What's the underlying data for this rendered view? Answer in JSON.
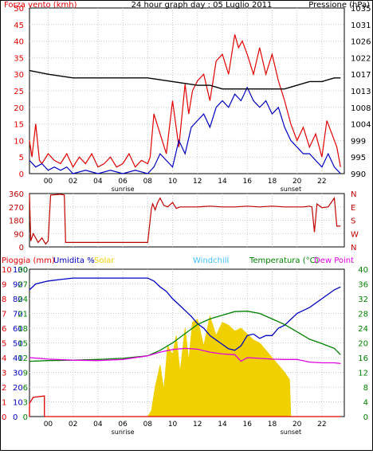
{
  "chart_data": [
    {
      "type": "line",
      "title": "24 hour graph day : 05 Luglio 2011",
      "left_axis_label": "Forza vento (kmh)",
      "right_axis_label": "Pressione (hPa)",
      "x_ticks": [
        "00",
        "02",
        "04",
        "06",
        "08",
        "10",
        "12",
        "14",
        "16",
        "18",
        "20",
        "22"
      ],
      "x_annotations": [
        {
          "label": "sunrise",
          "x": 6
        },
        {
          "label": "sunset",
          "x": 19.5
        }
      ],
      "y_left_ticks": [
        0,
        5,
        10,
        15,
        20,
        25,
        30,
        35,
        40,
        45,
        50
      ],
      "y_right_ticks": [
        990,
        995,
        999,
        1004,
        1008,
        1013,
        1017,
        1022,
        1026,
        1031,
        1035
      ],
      "ylim_left": [
        0,
        50
      ],
      "ylim_right": [
        990,
        1035
      ],
      "grid": true,
      "series": [
        {
          "name": "gust",
          "color": "#e00000",
          "axis": "left",
          "x": [
            -1.5,
            -1.3,
            -1,
            -0.7,
            -0.5,
            0,
            0.5,
            1,
            1.5,
            2,
            2.5,
            3,
            3.5,
            4,
            4.5,
            5,
            5.5,
            6,
            6.5,
            7,
            7.5,
            8,
            8.2,
            8.5,
            9,
            9.5,
            10,
            10.5,
            11,
            11.3,
            11.6,
            12,
            12.5,
            13,
            13.5,
            14,
            14.5,
            15,
            15.3,
            15.6,
            16,
            16.5,
            17,
            17.5,
            18,
            18.5,
            19,
            19.5,
            20,
            20.5,
            21,
            21.5,
            22,
            22.4,
            22.8,
            23.2,
            23.5
          ],
          "y": [
            10,
            5,
            15,
            4,
            3,
            6,
            4,
            3,
            6,
            2,
            5,
            3,
            6,
            2,
            3,
            5,
            2,
            3,
            6,
            2,
            4,
            3,
            5,
            18,
            12,
            6,
            22,
            8,
            27,
            18,
            25,
            28,
            30,
            22,
            34,
            36,
            30,
            42,
            38,
            40,
            36,
            30,
            38,
            30,
            36,
            28,
            22,
            15,
            10,
            14,
            8,
            12,
            5,
            16,
            12,
            8,
            2
          ]
        },
        {
          "name": "speed",
          "color": "#0000c0",
          "axis": "left",
          "x": [
            -1.5,
            -1,
            -0.5,
            0,
            0.5,
            1,
            1.5,
            2,
            3,
            4,
            5,
            6,
            7,
            8,
            8.5,
            9,
            9.5,
            10,
            10.5,
            11,
            11.5,
            12,
            12.5,
            13,
            13.5,
            14,
            14.5,
            15,
            15.5,
            16,
            16.5,
            17,
            17.5,
            18,
            18.5,
            19,
            19.5,
            20,
            20.5,
            21,
            21.5,
            22,
            22.5,
            23,
            23.5
          ],
          "y": [
            4,
            2,
            3,
            1,
            2,
            1,
            2,
            0,
            1,
            0,
            1,
            0,
            1,
            0,
            2,
            6,
            4,
            2,
            10,
            6,
            14,
            16,
            18,
            14,
            20,
            22,
            20,
            24,
            22,
            26,
            22,
            20,
            22,
            18,
            20,
            14,
            10,
            8,
            6,
            6,
            4,
            2,
            6,
            2,
            0
          ]
        },
        {
          "name": "pressione",
          "color": "#000000",
          "axis": "right",
          "x": [
            -1.5,
            0,
            2,
            4,
            6,
            8,
            10,
            12,
            13,
            14,
            15,
            16,
            17,
            18,
            19,
            20,
            21,
            22,
            23,
            23.5
          ],
          "y": [
            1018,
            1017,
            1016,
            1016,
            1016,
            1016,
            1015,
            1014,
            1014,
            1013,
            1013,
            1013,
            1013,
            1013,
            1013,
            1014,
            1015,
            1015,
            1016,
            1016
          ]
        }
      ]
    },
    {
      "type": "line",
      "left_ticks": [
        0,
        90,
        180,
        270,
        360
      ],
      "right_labels": [
        "N",
        "W",
        "S",
        "E",
        "N"
      ],
      "ylim": [
        0,
        360
      ],
      "series": [
        {
          "name": "direzione",
          "color": "#c00000",
          "x": [
            -1.5,
            -1.4,
            -1.2,
            -1,
            -0.8,
            -0.5,
            -0.2,
            0,
            0.2,
            1,
            1.3,
            1.4,
            2,
            4,
            6,
            8,
            8.3,
            8.4,
            8.6,
            8.8,
            9,
            9.3,
            9.6,
            10,
            10.3,
            10.6,
            11,
            12,
            13,
            14,
            15,
            16,
            17,
            18,
            19,
            20,
            20.5,
            21,
            21.2,
            21.4,
            21.6,
            22,
            22.5,
            23,
            23.2,
            23.5
          ],
          "y": [
            355,
            40,
            90,
            60,
            30,
            60,
            20,
            40,
            350,
            355,
            350,
            30,
            30,
            30,
            30,
            30,
            260,
            290,
            250,
            300,
            330,
            280,
            270,
            300,
            260,
            270,
            270,
            270,
            275,
            270,
            270,
            275,
            270,
            275,
            270,
            270,
            270,
            275,
            270,
            100,
            290,
            265,
            270,
            330,
            140,
            140
          ]
        }
      ]
    },
    {
      "type": "line",
      "legend": [
        "Pioggia (mm)",
        "Umidita %",
        "Solar",
        "Windchill",
        "Temperatura (°C)",
        "Dew Point"
      ],
      "legend_colors": [
        "#e00000",
        "#0000c0",
        "#f0d000",
        "#40c0ff",
        "#008000",
        "#e000e0"
      ],
      "x_ticks": [
        "00",
        "02",
        "04",
        "06",
        "08",
        "10",
        "12",
        "14",
        "16",
        "18",
        "20",
        "22"
      ],
      "x_annotations": [
        {
          "label": "sunrise",
          "x": 6
        },
        {
          "label": "sunset",
          "x": 19.5
        }
      ],
      "y_ticks_rain": [
        0,
        1,
        2,
        3,
        4,
        5,
        6,
        7,
        8,
        9,
        10
      ],
      "y_ticks_humidity": [
        0,
        10,
        20,
        30,
        40,
        50,
        60,
        70,
        80,
        90,
        100
      ],
      "y_ticks_temp_left": [
        0,
        3,
        6,
        9,
        12,
        15,
        18,
        21,
        24,
        27,
        30
      ],
      "y_ticks_temp_right": [
        0,
        4,
        8,
        12,
        16,
        20,
        24,
        28,
        32,
        36,
        40
      ],
      "ylim_temp_right": [
        0,
        40
      ],
      "grid": true,
      "series": [
        {
          "name": "Umidita %",
          "color": "#0000c0",
          "axis": "humidity",
          "x": [
            -1.5,
            -1,
            0,
            1,
            2,
            4,
            6,
            7,
            8,
            8.5,
            9,
            9.5,
            10,
            10.5,
            11,
            11.5,
            12,
            12.5,
            13,
            13.5,
            14,
            14.5,
            15,
            15.5,
            16,
            16.5,
            17,
            17.5,
            18,
            18.5,
            19,
            20,
            21,
            22,
            23,
            23.5
          ],
          "y": [
            86,
            90,
            92,
            93,
            94,
            94,
            94,
            94,
            94,
            92,
            88,
            85,
            80,
            76,
            72,
            68,
            63,
            60,
            55,
            52,
            49,
            46,
            45,
            48,
            55,
            56,
            53,
            55,
            55,
            60,
            62,
            70,
            74,
            80,
            86,
            88
          ]
        },
        {
          "name": "Temperatura (°C)",
          "color": "#008000",
          "axis": "temp_right",
          "x": [
            -1.5,
            0,
            2,
            4,
            6,
            8,
            9,
            10,
            11,
            12,
            13,
            14,
            15,
            16,
            17,
            18,
            19,
            20,
            21,
            22,
            23,
            23.5
          ],
          "y": [
            15,
            15.2,
            15.3,
            15.5,
            15.8,
            16.5,
            18,
            20,
            22.5,
            25,
            26.5,
            27.5,
            28.5,
            28.6,
            28,
            26.5,
            25,
            23,
            21,
            19.8,
            18.5,
            16.8
          ]
        },
        {
          "name": "Dew Point",
          "color": "#e000e0",
          "axis": "temp_right",
          "x": [
            -1.5,
            0,
            2,
            4,
            6,
            8,
            9,
            10,
            11,
            12,
            13,
            14,
            15,
            15.5,
            16,
            17,
            18,
            19,
            20,
            21,
            22,
            23,
            23.5
          ],
          "y": [
            16,
            15.6,
            15.3,
            15.2,
            15.5,
            16.5,
            17.5,
            18.2,
            18.5,
            18.3,
            17.5,
            17,
            16.8,
            15,
            16,
            15.8,
            15.6,
            15.5,
            15.5,
            14.8,
            14.6,
            14.6,
            14.4
          ]
        },
        {
          "name": "Solar",
          "color": "#f0d000",
          "axis": "humidity",
          "fill": true,
          "x": [
            8,
            8.3,
            8.6,
            9,
            9.3,
            9.6,
            10,
            10.3,
            10.6,
            11,
            11.3,
            11.6,
            12,
            12.5,
            13,
            13.5,
            14,
            14.5,
            15,
            15.5,
            16,
            16.5,
            17,
            17.5,
            18,
            18.5,
            19,
            19.4,
            19.5
          ],
          "y": [
            0,
            4,
            20,
            35,
            18,
            48,
            42,
            55,
            30,
            60,
            38,
            64,
            66,
            48,
            68,
            55,
            64,
            62,
            58,
            60,
            56,
            52,
            50,
            45,
            40,
            35,
            30,
            25,
            0
          ]
        },
        {
          "name": "Pioggia (mm)",
          "color": "#e00000",
          "axis": "rain",
          "x": [
            -1.5,
            -1.5,
            -1.2,
            -0.3,
            -0.3,
            23.5
          ],
          "y": [
            0,
            0.9,
            1.3,
            1.4,
            0,
            0
          ]
        }
      ]
    }
  ]
}
